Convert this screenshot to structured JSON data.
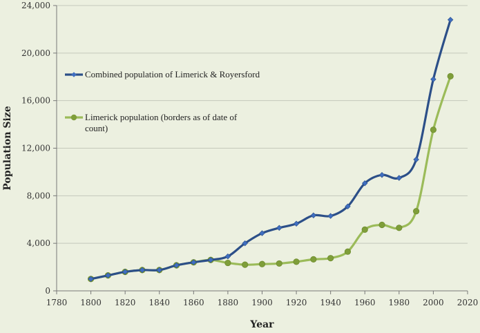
{
  "chart_data": {
    "type": "line",
    "title": "",
    "xlabel": "Year",
    "ylabel": "Population Size",
    "xlim": [
      1780,
      2020
    ],
    "ylim": [
      0,
      24000
    ],
    "xticks": [
      1780,
      1800,
      1820,
      1840,
      1860,
      1880,
      1900,
      1920,
      1940,
      1960,
      1980,
      2000,
      2020
    ],
    "yticks": [
      0,
      4000,
      8000,
      12000,
      16000,
      20000,
      24000
    ],
    "ytick_labels": [
      "0",
      "4,000",
      "8,000",
      "12,000",
      "16,000",
      "20,000",
      "24,000"
    ],
    "grid": "horizontal",
    "legend_position": "upper-left",
    "series": [
      {
        "name": "Combined population of Limerick & Royersford",
        "color": "#2c4f88",
        "marker": "diamond",
        "x": [
          1800,
          1810,
          1820,
          1830,
          1840,
          1850,
          1860,
          1870,
          1880,
          1890,
          1900,
          1910,
          1920,
          1930,
          1940,
          1950,
          1960,
          1970,
          1980,
          1990,
          2000,
          2010
        ],
        "values": [
          1000,
          1300,
          1600,
          1750,
          1750,
          2150,
          2400,
          2600,
          2900,
          4000,
          4850,
          5300,
          5650,
          6350,
          6300,
          7100,
          9050,
          9750,
          9500,
          11050,
          17800,
          22800
        ]
      },
      {
        "name": "Limerick population (borders as of date of count)",
        "color": "#9bbb59",
        "marker": "circle",
        "x": [
          1800,
          1810,
          1820,
          1830,
          1840,
          1850,
          1860,
          1870,
          1880,
          1890,
          1900,
          1910,
          1920,
          1930,
          1940,
          1950,
          1960,
          1970,
          1980,
          1990,
          2000,
          2010
        ],
        "values": [
          1000,
          1300,
          1600,
          1750,
          1750,
          2150,
          2400,
          2600,
          2350,
          2200,
          2250,
          2300,
          2450,
          2650,
          2750,
          3300,
          5150,
          5550,
          5300,
          6700,
          13550,
          18050
        ]
      }
    ]
  }
}
